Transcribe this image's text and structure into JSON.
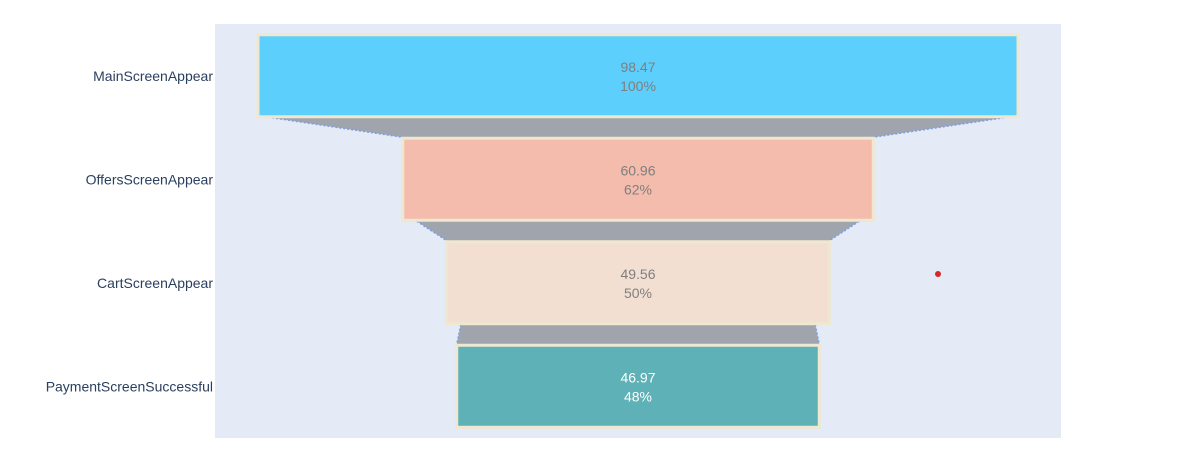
{
  "chart_data": {
    "type": "funnel",
    "categories": [
      "MainScreenAppear",
      "OffersScreenAppear",
      "CartScreenAppear",
      "PaymentScreenSuccessful"
    ],
    "values": [
      98.47,
      60.96,
      49.56,
      46.97
    ],
    "value_labels": [
      "98.47",
      "60.96",
      "49.56",
      "46.97"
    ],
    "percent_labels": [
      "100%",
      "62%",
      "50%",
      "48%"
    ],
    "colors": [
      "#5ccffc",
      "#f4bcac",
      "#f2dfd2",
      "#5eb1b6"
    ],
    "label_colors": [
      "#7f7f7f",
      "#7f7f7f",
      "#7f7f7f",
      "#ffffff"
    ],
    "border_color": "#efe7cf",
    "connector_color": "#a0a5ad",
    "connector_line_color": "#7b9fe6",
    "plot_bg": "#e5ebf6",
    "marker_color": "#d62728",
    "title": "",
    "xlabel": "",
    "ylabel": "",
    "legend": "none"
  }
}
